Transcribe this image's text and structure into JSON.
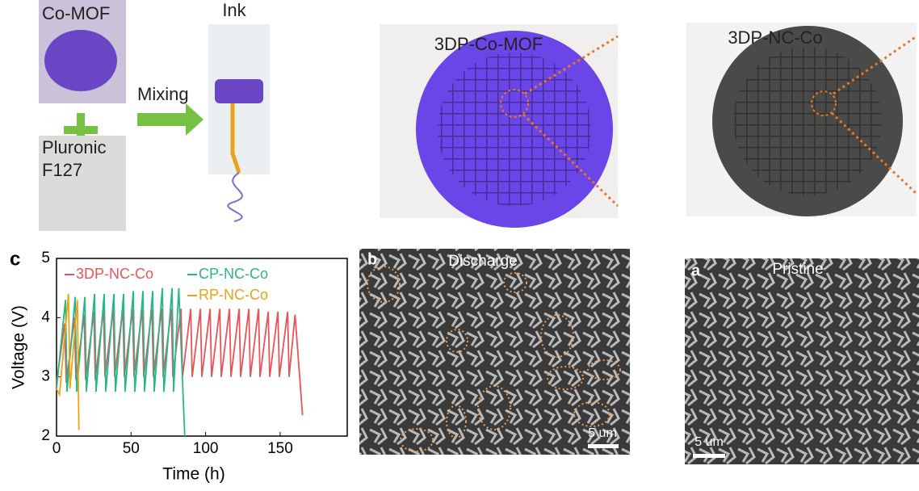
{
  "top": {
    "co_mof": "Co-MOF",
    "pluronic": [
      "Pluronic",
      "F127"
    ],
    "mixing": "Mixing",
    "ink": "Ink",
    "print_mof": "3DP-Co-MOF",
    "print_nc": "3DP-NC-Co"
  },
  "sem": {
    "b": {
      "label": "b",
      "title": "Discharge",
      "scale": "5 um"
    },
    "a": {
      "label": "a",
      "title": "Pristine",
      "scale": "5 um"
    }
  },
  "chart_data": {
    "type": "line",
    "panel_label": "c",
    "x_label": "Time (h)",
    "y_label": "Voltage (V)",
    "xlim": [
      0,
      195
    ],
    "ylim": [
      2,
      5
    ],
    "xticks": [
      0,
      50,
      100,
      150
    ],
    "yticks": [
      2,
      3,
      4,
      5
    ],
    "series": [
      {
        "name": "3DP-NC-Co",
        "color": "#e8545a",
        "x": [
          0,
          5.5,
          6.5,
          12,
          13,
          18.5,
          19.5,
          25,
          26,
          31.5,
          32.5,
          38,
          39,
          44.5,
          45.5,
          51,
          52,
          57.5,
          58.5,
          64,
          65,
          70.5,
          71.5,
          77,
          78,
          83.5,
          84.5,
          90,
          91,
          96.5,
          97.5,
          103,
          104,
          109.5,
          110.5,
          116,
          117,
          122.5,
          123.5,
          129,
          130,
          135.5,
          136.5,
          142,
          143,
          148.5,
          149.5,
          155,
          156,
          160,
          165
        ],
        "values": [
          2.9,
          3.9,
          2.9,
          4.0,
          2.95,
          4.05,
          2.95,
          4.1,
          2.95,
          4.15,
          3.0,
          4.15,
          3.0,
          4.15,
          3.0,
          4.15,
          3.0,
          4.15,
          3.0,
          4.15,
          3.0,
          4.15,
          3.0,
          4.15,
          3.0,
          4.15,
          3.0,
          4.15,
          3.0,
          4.15,
          3.0,
          4.15,
          3.0,
          4.15,
          3.0,
          4.15,
          3.0,
          4.15,
          3.0,
          4.15,
          3.0,
          4.15,
          3.0,
          4.1,
          3.0,
          4.1,
          3.0,
          4.1,
          3.0,
          4.05,
          2.35
        ]
      },
      {
        "name": "CP-NC-Co",
        "color": "#2ab58a",
        "x": [
          0,
          6,
          7,
          12.5,
          13.5,
          19,
          20,
          25.5,
          26.5,
          32,
          33,
          38.5,
          39.5,
          45,
          46,
          51.5,
          52.5,
          58,
          59,
          64.5,
          65.5,
          71,
          72,
          77.5,
          78.5,
          82,
          86
        ],
        "values": [
          2.8,
          4.3,
          2.75,
          4.35,
          2.75,
          4.35,
          2.75,
          4.4,
          2.75,
          4.4,
          2.75,
          4.4,
          2.75,
          4.4,
          2.75,
          4.45,
          2.75,
          4.45,
          2.75,
          4.45,
          2.75,
          4.5,
          2.75,
          4.5,
          2.75,
          4.5,
          2.0
        ]
      },
      {
        "name": "RP-NC-Co",
        "color": "#e8a317",
        "x": [
          0,
          2,
          8,
          9,
          14,
          15
        ],
        "values": [
          2.8,
          2.7,
          4.4,
          2.8,
          4.3,
          2.1
        ]
      }
    ]
  }
}
